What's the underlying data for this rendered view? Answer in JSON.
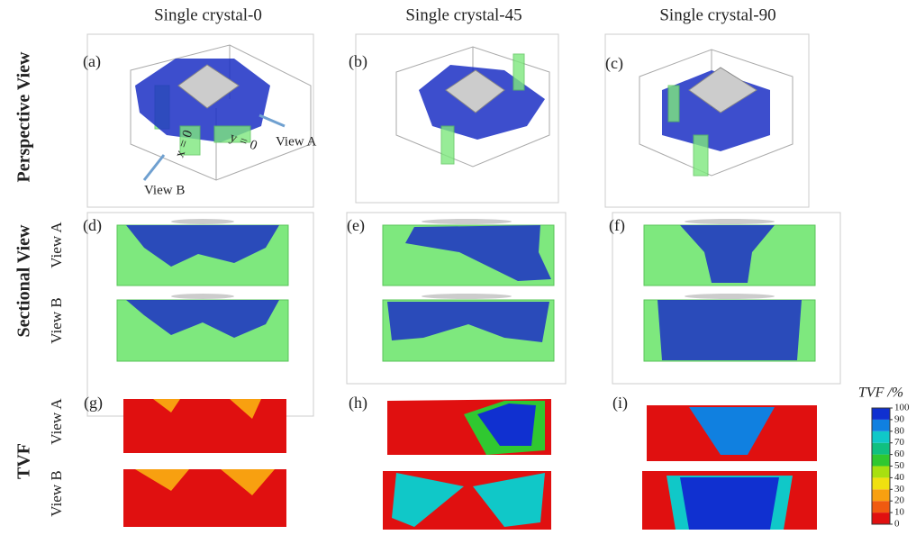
{
  "columns": [
    "Single crystal-0",
    "Single crystal-45",
    "Single crystal-90"
  ],
  "rows": [
    "Perspective View",
    "Sectional View",
    "TVF"
  ],
  "view_labels": [
    "View A",
    "View B"
  ],
  "panel_labels": [
    "(a)",
    "(b)",
    "(c)",
    "(d)",
    "(e)",
    "(f)",
    "(g)",
    "(h)",
    "(i)"
  ],
  "annotations": {
    "view_a": "View A",
    "view_b": "View B",
    "x0": "x = 0",
    "y0": "y = 0"
  },
  "colorbar": {
    "title": "TVF /%",
    "ticks": [
      0,
      10,
      20,
      30,
      40,
      50,
      60,
      70,
      80,
      90,
      100
    ],
    "colors": [
      "#e01010",
      "#f05a10",
      "#f8a010",
      "#f0e010",
      "#a8e010",
      "#30c830",
      "#10c080",
      "#10c8c8",
      "#1080e0",
      "#1030d0"
    ]
  }
}
